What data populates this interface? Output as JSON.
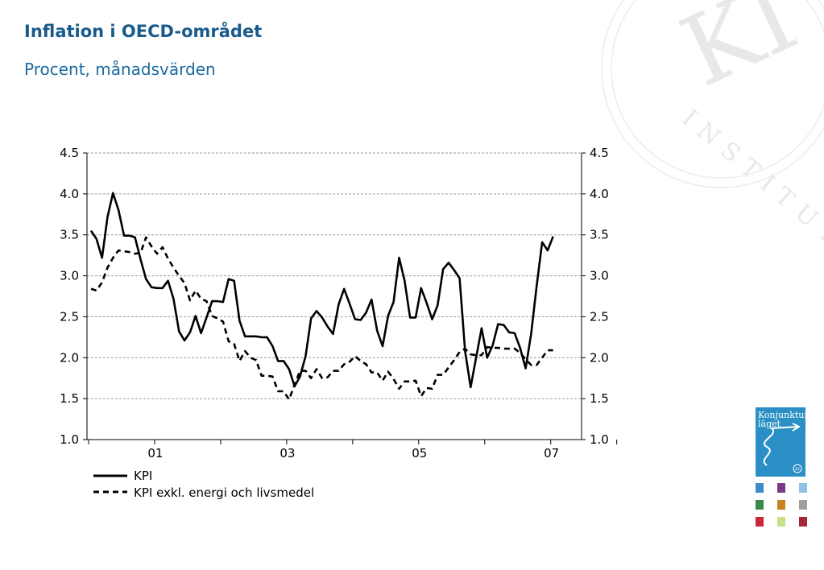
{
  "header": {
    "title": "Inflation i OECD-området",
    "subtitle": "Procent, månadsvärden"
  },
  "watermark": {
    "monogram": "KI",
    "ring_text": "INSTITUTET"
  },
  "brand": {
    "logo_line1": "Konjunktur",
    "logo_line2": "läget",
    "logo_badge": "KI",
    "logo_color": "#2a8fc4",
    "swatches": [
      "#3a8cc8",
      "#7a3a8a",
      "#8cc4e0",
      "#3a8a4a",
      "#c8821e",
      "#a0a0a0",
      "#c8283a",
      "#c8e08c",
      "#a8283a"
    ]
  },
  "chart_data": {
    "type": "line",
    "ylim": [
      1.0,
      4.5
    ],
    "y_ticks": [
      "1.0",
      "1.5",
      "2.0",
      "2.5",
      "3.0",
      "3.5",
      "4.0",
      "4.5"
    ],
    "x_tick_labels": [
      "01",
      "03",
      "05",
      "07"
    ],
    "grid": "horizontal dashed",
    "legend_position": "bottom-left",
    "series": [
      {
        "name": "KPI",
        "style": "solid",
        "color": "#000000",
        "values": [
          3.55,
          3.45,
          3.22,
          3.72,
          4.01,
          3.8,
          3.49,
          3.49,
          3.47,
          3.2,
          2.96,
          2.86,
          2.85,
          2.85,
          2.94,
          2.72,
          2.32,
          2.21,
          2.31,
          2.51,
          2.3,
          2.49,
          2.69,
          2.69,
          2.68,
          2.96,
          2.94,
          2.45,
          2.26,
          2.26,
          2.26,
          2.25,
          2.25,
          2.14,
          1.96,
          1.96,
          1.86,
          1.65,
          1.77,
          2.02,
          2.48,
          2.57,
          2.49,
          2.38,
          2.29,
          2.65,
          2.84,
          2.66,
          2.47,
          2.46,
          2.55,
          2.71,
          2.33,
          2.14,
          2.51,
          2.68,
          3.22,
          2.94,
          2.49,
          2.49,
          2.85,
          2.67,
          2.47,
          2.64,
          3.08,
          3.16,
          3.07,
          2.97,
          2.08,
          1.64,
          2.0,
          2.36,
          2.0,
          2.15,
          2.41,
          2.4,
          2.31,
          2.3,
          2.12,
          1.87,
          2.29,
          2.87,
          3.41,
          3.31,
          3.48
        ]
      },
      {
        "name": "KPI exkl. energi och livsmedel",
        "style": "dashed",
        "color": "#000000",
        "values": [
          2.84,
          2.82,
          2.92,
          3.1,
          3.22,
          3.31,
          3.3,
          3.29,
          3.27,
          3.28,
          3.47,
          3.36,
          3.27,
          3.35,
          3.21,
          3.1,
          3.0,
          2.91,
          2.7,
          2.82,
          2.72,
          2.69,
          2.51,
          2.48,
          2.44,
          2.2,
          2.17,
          1.96,
          2.08,
          2.0,
          1.97,
          1.78,
          1.78,
          1.77,
          1.59,
          1.59,
          1.49,
          1.67,
          1.84,
          1.84,
          1.75,
          1.86,
          1.75,
          1.76,
          1.84,
          1.84,
          1.92,
          1.95,
          2.02,
          1.96,
          1.92,
          1.82,
          1.82,
          1.72,
          1.83,
          1.74,
          1.62,
          1.71,
          1.71,
          1.72,
          1.53,
          1.63,
          1.62,
          1.79,
          1.79,
          1.88,
          1.97,
          2.07,
          2.11,
          2.04,
          2.03,
          2.03,
          2.13,
          2.12,
          2.12,
          2.11,
          2.11,
          2.11,
          2.06,
          1.98,
          1.91,
          1.91,
          2.0,
          2.09,
          2.09
        ]
      }
    ]
  }
}
